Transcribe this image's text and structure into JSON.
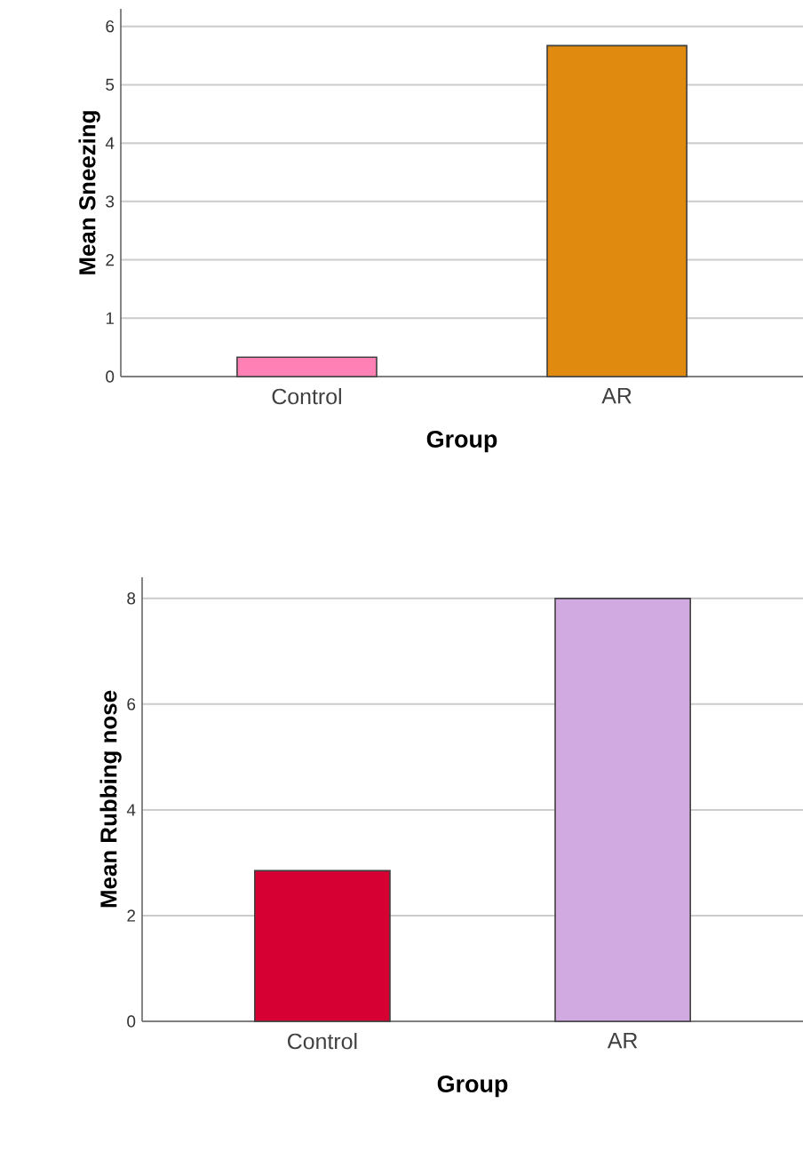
{
  "chart_data": [
    {
      "type": "bar",
      "xlabel": "Group",
      "ylabel": "Mean Sneezing",
      "categories": [
        "Control",
        "AR"
      ],
      "values": [
        0.33,
        5.67
      ],
      "colors": [
        "#ff80b4",
        "#e08a10"
      ],
      "ylim": [
        0,
        6.3
      ],
      "yticks": [
        0,
        1,
        2,
        3,
        4,
        5,
        6
      ],
      "grid": "y"
    },
    {
      "type": "bar",
      "xlabel": "Group",
      "ylabel": "Mean Rubbing nose",
      "categories": [
        "Control",
        "AR"
      ],
      "values": [
        2.85,
        8.0
      ],
      "colors": [
        "#d60032",
        "#d2aae2"
      ],
      "ylim": [
        0,
        8.4
      ],
      "yticks": [
        0,
        2,
        4,
        6,
        8
      ],
      "grid": "y"
    }
  ]
}
